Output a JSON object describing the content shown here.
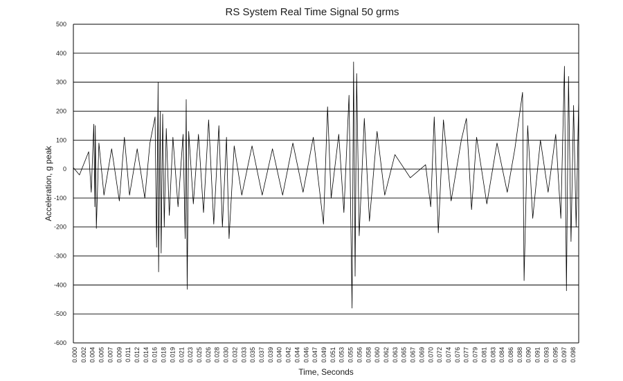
{
  "chart_data": {
    "type": "line",
    "title": "RS System Real Time Signal 50 grms",
    "xlabel": "Time, Seconds",
    "ylabel": "Acceleration, g peak",
    "ylim": [
      -600,
      500
    ],
    "xlim": [
      0.0,
      0.099
    ],
    "grid": "horizontal",
    "legend": "none",
    "line_color": "#000000",
    "y_ticks": [
      "500",
      "400",
      "300",
      "200",
      "100",
      "0",
      "-100",
      "-200",
      "-300",
      "-400",
      "-500",
      "-600"
    ],
    "x_ticks": [
      "0.000",
      "0.002",
      "0.004",
      "0.005",
      "0.007",
      "0.009",
      "0.011",
      "0.012",
      "0.014",
      "0.016",
      "0.018",
      "0.019",
      "0.021",
      "0.023",
      "0.025",
      "0.026",
      "0.028",
      "0.030",
      "0.032",
      "0.033",
      "0.035",
      "0.037",
      "0.039",
      "0.040",
      "0.042",
      "0.044",
      "0.046",
      "0.047",
      "0.049",
      "0.051",
      "0.053",
      "0.055",
      "0.056",
      "0.058",
      "0.060",
      "0.062",
      "0.063",
      "0.065",
      "0.067",
      "0.069",
      "0.070",
      "0.072",
      "0.074",
      "0.076",
      "0.077",
      "0.079",
      "0.081",
      "0.083",
      "0.084",
      "0.086",
      "0.088",
      "0.090",
      "0.091",
      "0.093",
      "0.095",
      "0.097",
      "0.098"
    ],
    "series": [
      {
        "points": [
          [
            0.0,
            5
          ],
          [
            0.0012,
            -20
          ],
          [
            0.003,
            60
          ],
          [
            0.0035,
            -80
          ],
          [
            0.004,
            155
          ],
          [
            0.0042,
            -130
          ],
          [
            0.0043,
            150
          ],
          [
            0.0045,
            -205
          ],
          [
            0.005,
            90
          ],
          [
            0.006,
            -90
          ],
          [
            0.0075,
            70
          ],
          [
            0.009,
            -110
          ],
          [
            0.01,
            110
          ],
          [
            0.011,
            -90
          ],
          [
            0.0125,
            70
          ],
          [
            0.014,
            -100
          ],
          [
            0.015,
            90
          ],
          [
            0.016,
            180
          ],
          [
            0.0163,
            -270
          ],
          [
            0.0166,
            300
          ],
          [
            0.0167,
            -355
          ],
          [
            0.017,
            200
          ],
          [
            0.0172,
            -290
          ],
          [
            0.0175,
            190
          ],
          [
            0.0178,
            -200
          ],
          [
            0.0182,
            140
          ],
          [
            0.0188,
            -160
          ],
          [
            0.0195,
            110
          ],
          [
            0.0205,
            -130
          ],
          [
            0.0215,
            120
          ],
          [
            0.0219,
            -240
          ],
          [
            0.0221,
            240
          ],
          [
            0.0223,
            -415
          ],
          [
            0.0226,
            130
          ],
          [
            0.0235,
            -120
          ],
          [
            0.0245,
            120
          ],
          [
            0.0255,
            -150
          ],
          [
            0.0265,
            170
          ],
          [
            0.0275,
            -190
          ],
          [
            0.0285,
            150
          ],
          [
            0.0292,
            -200
          ],
          [
            0.03,
            110
          ],
          [
            0.0305,
            -240
          ],
          [
            0.0315,
            80
          ],
          [
            0.033,
            -90
          ],
          [
            0.035,
            80
          ],
          [
            0.037,
            -90
          ],
          [
            0.039,
            70
          ],
          [
            0.041,
            -90
          ],
          [
            0.043,
            90
          ],
          [
            0.045,
            -80
          ],
          [
            0.047,
            110
          ],
          [
            0.049,
            -190
          ],
          [
            0.0498,
            215
          ],
          [
            0.0505,
            -100
          ],
          [
            0.052,
            120
          ],
          [
            0.053,
            -150
          ],
          [
            0.054,
            255
          ],
          [
            0.0546,
            -480
          ],
          [
            0.0549,
            370
          ],
          [
            0.0552,
            -370
          ],
          [
            0.0555,
            330
          ],
          [
            0.056,
            -230
          ],
          [
            0.057,
            175
          ],
          [
            0.058,
            -180
          ],
          [
            0.0595,
            130
          ],
          [
            0.061,
            -90
          ],
          [
            0.063,
            50
          ],
          [
            0.066,
            -30
          ],
          [
            0.069,
            15
          ],
          [
            0.07,
            -130
          ],
          [
            0.0707,
            180
          ],
          [
            0.0715,
            -220
          ],
          [
            0.0725,
            170
          ],
          [
            0.074,
            -110
          ],
          [
            0.076,
            100
          ],
          [
            0.077,
            175
          ],
          [
            0.078,
            -140
          ],
          [
            0.079,
            110
          ],
          [
            0.081,
            -120
          ],
          [
            0.083,
            90
          ],
          [
            0.085,
            -80
          ],
          [
            0.0865,
            70
          ],
          [
            0.088,
            265
          ],
          [
            0.0883,
            -385
          ],
          [
            0.089,
            150
          ],
          [
            0.09,
            -170
          ],
          [
            0.0915,
            100
          ],
          [
            0.093,
            -80
          ],
          [
            0.0945,
            120
          ],
          [
            0.0955,
            -170
          ],
          [
            0.0962,
            355
          ],
          [
            0.0966,
            -420
          ],
          [
            0.097,
            320
          ],
          [
            0.0975,
            -250
          ],
          [
            0.098,
            220
          ],
          [
            0.0985,
            -200
          ],
          [
            0.099,
            240
          ]
        ]
      }
    ]
  }
}
